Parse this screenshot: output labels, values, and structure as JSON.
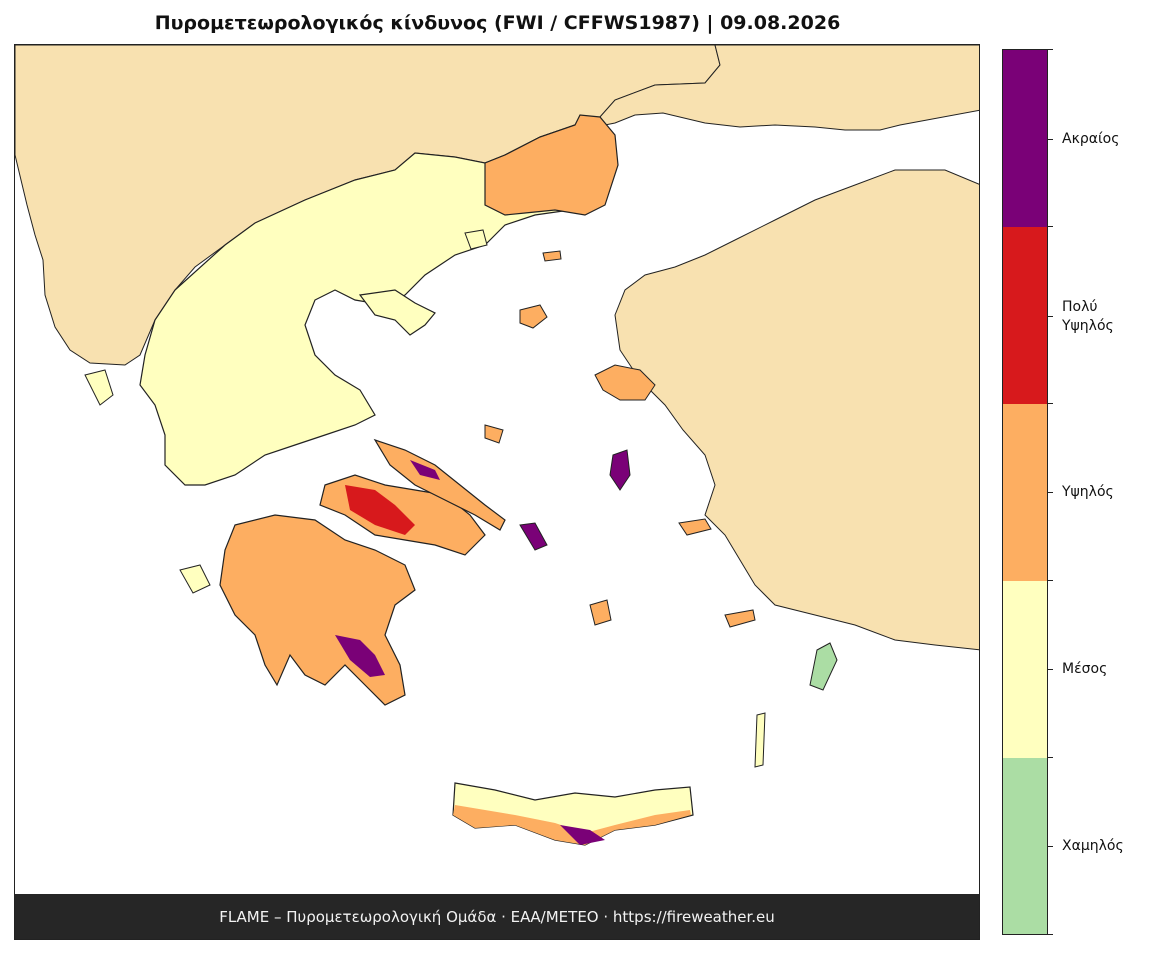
{
  "title": "Πυρομετεωρολογικός κίνδυνος (FWI / CFFWS1987)  |  09.08.2026",
  "credits": "FLAME – Πυρομετεωρολογική Ομάδα · ΕΑΑ/METEO · https://fireweather.eu",
  "legend": {
    "classes": [
      {
        "label": "Ακραίος",
        "color": "#7a0177"
      },
      {
        "label": "Πολύ\nΥψηλός",
        "color": "#d7191c"
      },
      {
        "label": "Υψηλός",
        "color": "#fdae61"
      },
      {
        "label": "Μέσος",
        "color": "#ffffbf"
      },
      {
        "label": "Χαμηλός",
        "color": "#abdda4"
      }
    ]
  },
  "colors": {
    "neighbor_land": "#f8e1b0",
    "sea": "#ffffff",
    "border": "#222222",
    "credits_bg": "#262626"
  }
}
